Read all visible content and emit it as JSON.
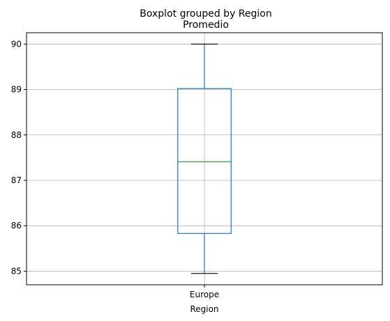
{
  "chart_data": {
    "type": "boxplot",
    "suptitle": "Boxplot grouped by Region",
    "title": "Promedio",
    "xlabel": "Region",
    "ylabel": "",
    "categories": [
      "Europe"
    ],
    "boxes": [
      {
        "category": "Europe",
        "whisker_low": 84.95,
        "q1": 85.83,
        "median": 87.41,
        "q3": 89.02,
        "whisker_high": 90.0
      }
    ],
    "ylim": [
      84.7,
      90.25
    ],
    "yticks": [
      85,
      86,
      87,
      88,
      89,
      90
    ],
    "grid": true,
    "colors": {
      "box": "#1f77b4",
      "median": "#2ca02c",
      "caps": "#000000",
      "grid": "#b0b0b0",
      "axes": "#000000"
    }
  }
}
